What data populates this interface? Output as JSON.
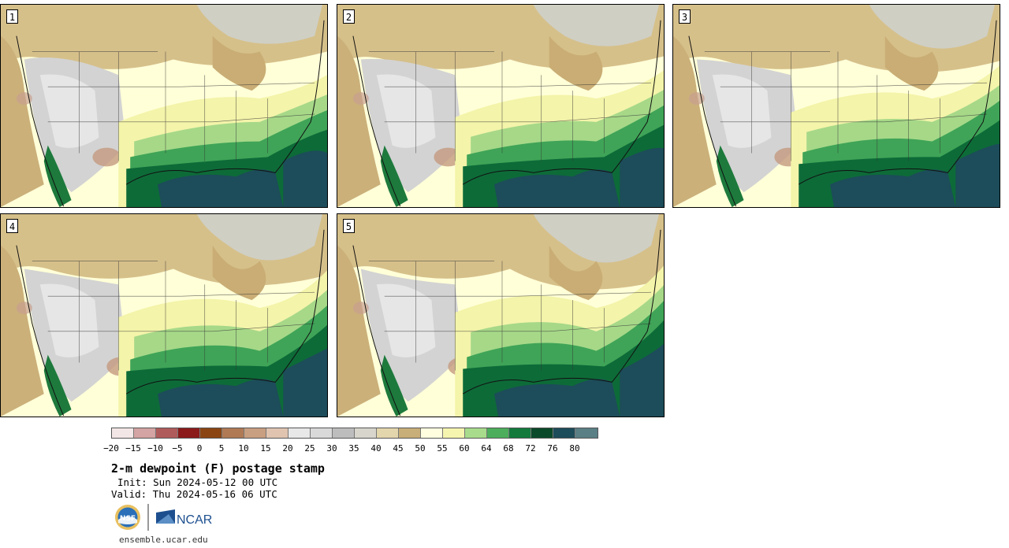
{
  "panels": [
    {
      "number": "1"
    },
    {
      "number": "2"
    },
    {
      "number": "3"
    },
    {
      "number": "4"
    },
    {
      "number": "5"
    }
  ],
  "colorbar": {
    "colors": [
      "#f3e6e6",
      "#d4a3a3",
      "#b05b5b",
      "#8b1a1a",
      "#8b4513",
      "#b07a55",
      "#c89f80",
      "#e0c4b0",
      "#e8e8e8",
      "#d9d9d9",
      "#bdbdbd",
      "#d8d6cc",
      "#e3d5ac",
      "#c8ae78",
      "#ffffe0",
      "#f5f5b0",
      "#a8dc8c",
      "#4cae5c",
      "#137a3c",
      "#0a4a2a",
      "#1d4c5a",
      "#5a7f84"
    ],
    "tick_labels": [
      "−20",
      "−15",
      "−10",
      "−5",
      "0",
      "5",
      "10",
      "15",
      "20",
      "25",
      "30",
      "35",
      "40",
      "45",
      "50",
      "55",
      "60",
      "64",
      "68",
      "72",
      "76",
      "80"
    ]
  },
  "title": "2-m dewpoint (F) postage stamp",
  "init": "Init: Sun 2024-05-12 00 UTC",
  "valid": "Valid: Thu 2024-05-16 06 UTC",
  "logo_nsf": "NSF",
  "logo_ncar": "NCAR",
  "url": "ensemble.ucar.edu"
}
